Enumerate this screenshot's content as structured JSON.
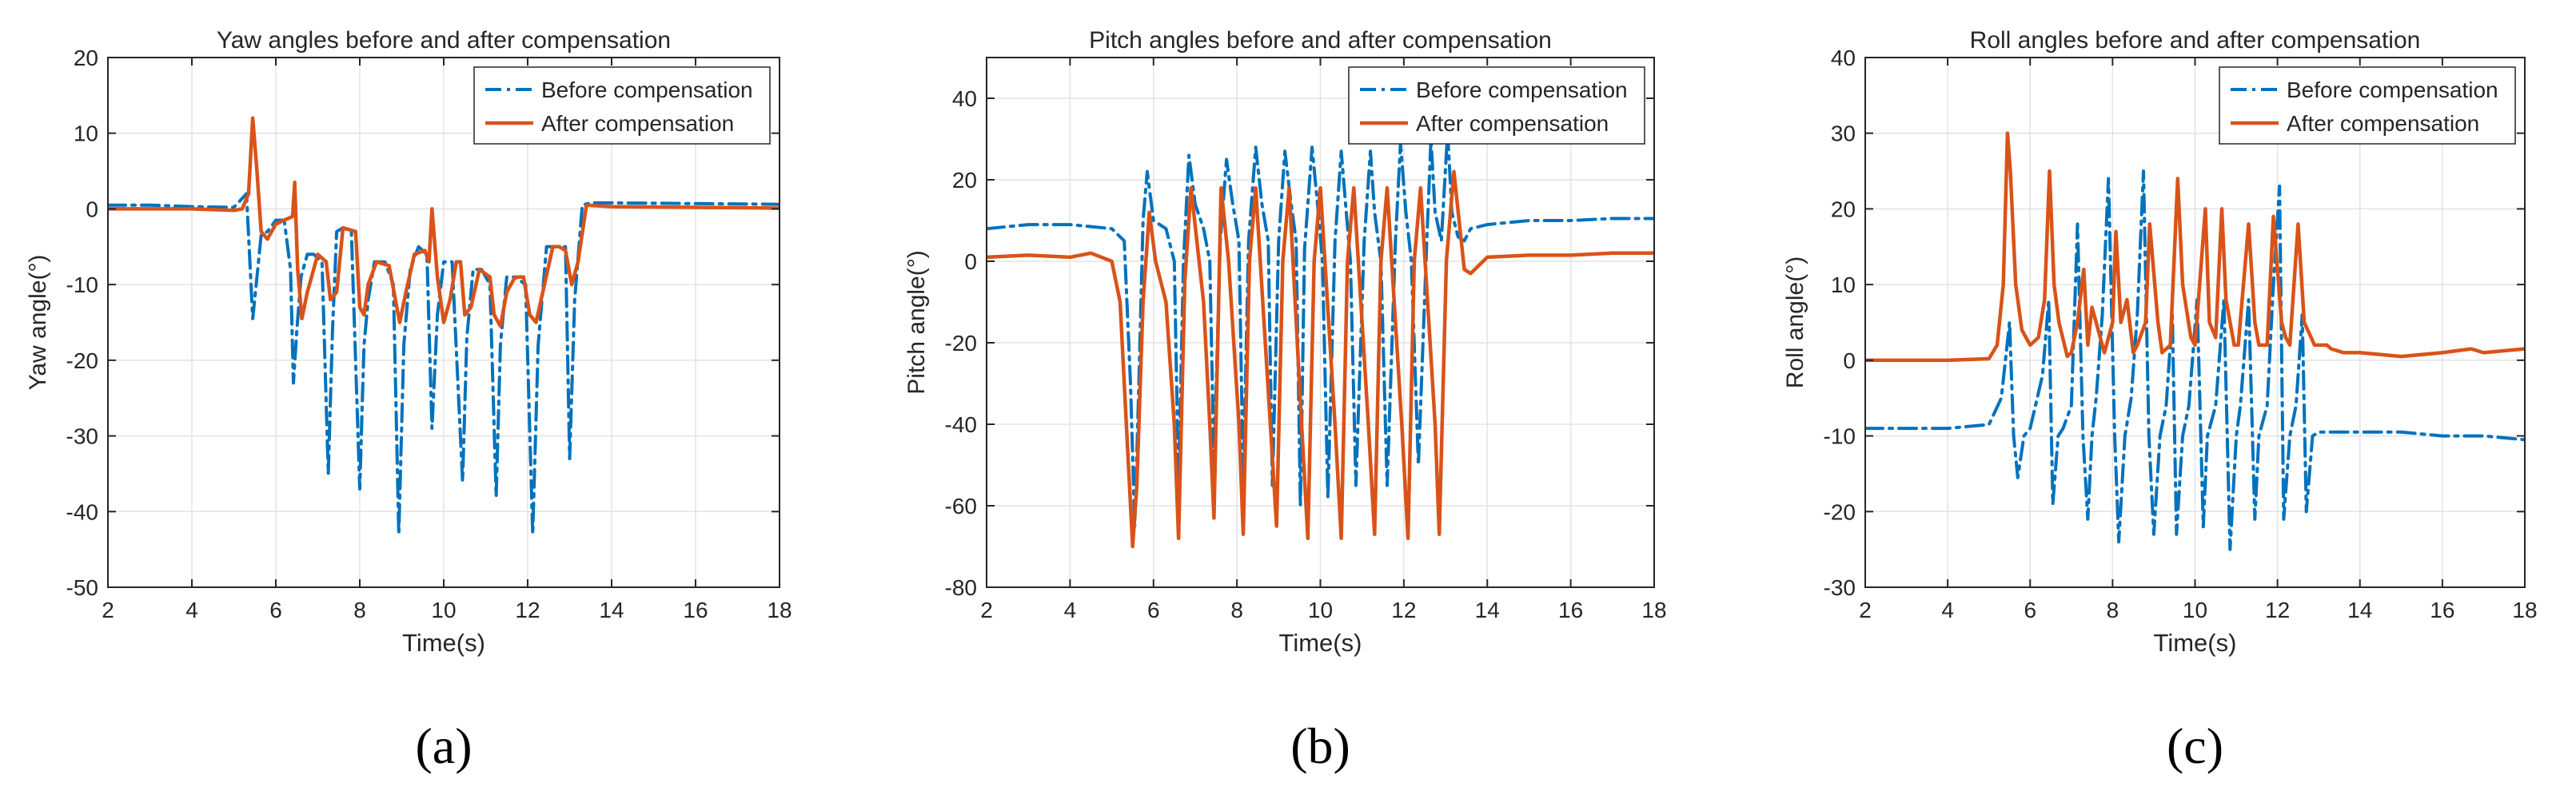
{
  "figure": {
    "sub_labels": [
      "(a)",
      "(b)",
      "(c)"
    ]
  },
  "colors": {
    "before": "#0072BD",
    "after": "#D95319",
    "grid": "#e3e3e3",
    "axis": "#262626"
  },
  "chart_data": [
    {
      "type": "line",
      "title": "Yaw angles before and after compensation",
      "xlabel": "Time(s)",
      "ylabel": "Yaw angle(°)",
      "xlim": [
        2,
        18
      ],
      "ylim": [
        -50,
        20
      ],
      "xticks": [
        2,
        4,
        6,
        8,
        10,
        12,
        14,
        16,
        18
      ],
      "yticks": [
        -50,
        -40,
        -30,
        -20,
        -10,
        0,
        10,
        20
      ],
      "grid": true,
      "legend_position": "top-right",
      "series": [
        {
          "name": "Before compensation",
          "style": "dash-dot",
          "x": [
            2.0,
            3.0,
            4.0,
            5.0,
            5.3,
            5.45,
            5.55,
            5.65,
            5.8,
            6.0,
            6.2,
            6.35,
            6.42,
            6.5,
            6.6,
            6.75,
            6.9,
            7.1,
            7.25,
            7.35,
            7.45,
            7.6,
            7.8,
            8.0,
            8.1,
            8.2,
            8.35,
            8.6,
            8.8,
            8.93,
            9.05,
            9.2,
            9.4,
            9.6,
            9.72,
            9.85,
            10.0,
            10.2,
            10.45,
            10.55,
            10.7,
            10.9,
            11.1,
            11.25,
            11.35,
            11.5,
            11.7,
            11.95,
            12.12,
            12.25,
            12.45,
            12.7,
            12.9,
            13.0,
            13.12,
            13.3,
            13.5,
            14.0,
            16.0,
            18.0
          ],
          "values": [
            0.5,
            0.5,
            0.3,
            0.2,
            2.0,
            -14.5,
            -9.0,
            -3.5,
            -3.0,
            -1.5,
            -1.5,
            -8.0,
            -23.0,
            -16.0,
            -9.0,
            -6.0,
            -6.0,
            -7.0,
            -35.0,
            -16.0,
            -3.0,
            -2.5,
            -3.0,
            -37.0,
            -18.0,
            -12.0,
            -7.0,
            -7.0,
            -10.0,
            -43.0,
            -18.0,
            -8.0,
            -5.0,
            -6.0,
            -29.0,
            -14.0,
            -7.0,
            -7.0,
            -36.0,
            -17.0,
            -8.0,
            -8.0,
            -10.0,
            -38.0,
            -18.0,
            -9.0,
            -9.0,
            -10.0,
            -43.0,
            -18.0,
            -5.0,
            -5.0,
            -5.0,
            -33.0,
            -12.0,
            0.5,
            0.8,
            0.8,
            0.7,
            0.6
          ]
        },
        {
          "name": "After compensation",
          "style": "solid",
          "x": [
            2.0,
            3.0,
            4.0,
            5.0,
            5.2,
            5.35,
            5.45,
            5.55,
            5.65,
            5.8,
            6.0,
            6.2,
            6.4,
            6.45,
            6.52,
            6.62,
            6.75,
            7.0,
            7.2,
            7.3,
            7.45,
            7.6,
            7.9,
            8.0,
            8.1,
            8.2,
            8.4,
            8.7,
            8.85,
            8.95,
            9.1,
            9.3,
            9.55,
            9.65,
            9.72,
            9.85,
            10.0,
            10.15,
            10.3,
            10.4,
            10.5,
            10.65,
            10.85,
            11.1,
            11.2,
            11.35,
            11.5,
            11.7,
            11.9,
            12.05,
            12.2,
            12.4,
            12.6,
            12.75,
            12.9,
            13.05,
            13.2,
            13.4,
            14.0,
            16.0,
            18.0
          ],
          "values": [
            0.0,
            0.0,
            0.0,
            -0.2,
            0.0,
            2.0,
            12.0,
            5.0,
            -3.0,
            -4.0,
            -2.0,
            -1.5,
            -1.0,
            3.5,
            -8.0,
            -14.5,
            -11.0,
            -6.0,
            -7.0,
            -12.0,
            -11.0,
            -2.5,
            -3.0,
            -13.0,
            -14.0,
            -10.0,
            -7.0,
            -7.5,
            -12.0,
            -15.0,
            -11.0,
            -6.0,
            -5.5,
            -7.0,
            0.0,
            -9.0,
            -15.0,
            -12.0,
            -7.0,
            -7.0,
            -14.0,
            -13.0,
            -8.0,
            -9.0,
            -14.0,
            -15.5,
            -11.0,
            -9.0,
            -9.0,
            -14.0,
            -15.0,
            -10.0,
            -5.0,
            -5.0,
            -5.5,
            -10.0,
            -7.0,
            0.5,
            0.3,
            0.2,
            0.1
          ]
        }
      ]
    },
    {
      "type": "line",
      "title": "Pitch angles before and after compensation",
      "xlabel": "Time(s)",
      "ylabel": "Pitch angle(°)",
      "xlim": [
        2,
        18
      ],
      "ylim": [
        -80,
        50
      ],
      "xticks": [
        2,
        4,
        6,
        8,
        10,
        12,
        14,
        16,
        18
      ],
      "yticks": [
        -80,
        -60,
        -40,
        -20,
        0,
        20,
        40
      ],
      "grid": true,
      "legend_position": "top-right",
      "series": [
        {
          "name": "Before compensation",
          "style": "dash-dot",
          "x": [
            2.0,
            3.0,
            4.0,
            5.0,
            5.3,
            5.45,
            5.55,
            5.65,
            5.75,
            5.85,
            6.0,
            6.3,
            6.5,
            6.6,
            6.72,
            6.85,
            7.0,
            7.2,
            7.35,
            7.45,
            7.6,
            7.75,
            7.9,
            8.05,
            8.15,
            8.28,
            8.45,
            8.6,
            8.75,
            8.85,
            9.0,
            9.15,
            9.3,
            9.42,
            9.52,
            9.62,
            9.8,
            9.95,
            10.05,
            10.18,
            10.35,
            10.5,
            10.62,
            10.72,
            10.85,
            11.05,
            11.2,
            11.3,
            11.45,
            11.6,
            11.8,
            11.92,
            12.05,
            12.18,
            12.35,
            12.55,
            12.65,
            12.75,
            12.9,
            13.05,
            13.15,
            13.3,
            13.45,
            13.6,
            14.0,
            15.0,
            16.0,
            17.0,
            18.0
          ],
          "values": [
            8.0,
            9.0,
            9.0,
            8.0,
            5.0,
            -30.0,
            -65.0,
            -30.0,
            10.0,
            22.0,
            10.0,
            8.0,
            0.0,
            -55.0,
            0.0,
            26.0,
            14.0,
            8.0,
            0.0,
            -50.0,
            5.0,
            25.0,
            14.0,
            5.0,
            -55.0,
            5.0,
            28.0,
            14.0,
            5.0,
            -55.0,
            5.0,
            27.0,
            14.0,
            5.0,
            -60.0,
            3.0,
            28.0,
            12.0,
            0.0,
            -58.0,
            5.0,
            27.0,
            12.0,
            0.0,
            -55.0,
            5.0,
            27.0,
            12.0,
            0.0,
            -55.0,
            5.0,
            29.0,
            12.0,
            0.0,
            -50.0,
            5.0,
            30.0,
            12.0,
            5.0,
            32.0,
            12.0,
            6.0,
            5.0,
            8.0,
            9.0,
            10.0,
            10.0,
            10.5,
            10.5
          ]
        },
        {
          "name": "After compensation",
          "style": "solid",
          "x": [
            2.0,
            3.0,
            4.0,
            4.5,
            5.0,
            5.2,
            5.35,
            5.5,
            5.6,
            5.75,
            5.9,
            6.05,
            6.3,
            6.5,
            6.6,
            6.75,
            6.9,
            7.2,
            7.35,
            7.45,
            7.62,
            7.8,
            8.05,
            8.15,
            8.3,
            8.45,
            8.8,
            8.95,
            9.1,
            9.25,
            9.55,
            9.7,
            9.85,
            10.0,
            10.35,
            10.5,
            10.65,
            10.8,
            11.15,
            11.3,
            11.45,
            11.6,
            11.95,
            12.1,
            12.25,
            12.4,
            12.75,
            12.85,
            13.02,
            13.2,
            13.45,
            13.6,
            14.0,
            15.0,
            16.0,
            17.0,
            18.0
          ],
          "values": [
            1.0,
            1.5,
            1.0,
            2.0,
            0.0,
            -10.0,
            -40.0,
            -70.0,
            -55.0,
            -10.0,
            12.0,
            0.0,
            -10.0,
            -40.0,
            -68.0,
            -5.0,
            18.0,
            -10.0,
            -40.0,
            -63.0,
            18.0,
            0.0,
            -40.0,
            -67.0,
            0.0,
            18.0,
            -40.0,
            -65.0,
            0.0,
            18.0,
            -40.0,
            -68.0,
            0.0,
            18.0,
            -40.0,
            -68.0,
            0.0,
            18.0,
            -40.0,
            -67.0,
            0.0,
            18.0,
            -40.0,
            -68.0,
            0.0,
            18.0,
            -40.0,
            -67.0,
            0.0,
            22.0,
            -2.0,
            -3.0,
            1.0,
            1.5,
            1.5,
            2.0,
            2.0
          ]
        }
      ]
    },
    {
      "type": "line",
      "title": "Roll angles before and after compensation",
      "xlabel": "Time(s)",
      "ylabel": "Roll angle(°)",
      "xlim": [
        2,
        18
      ],
      "ylim": [
        -30,
        40
      ],
      "xticks": [
        2,
        4,
        6,
        8,
        10,
        12,
        14,
        16,
        18
      ],
      "yticks": [
        -30,
        -20,
        -10,
        0,
        10,
        20,
        30,
        40
      ],
      "grid": true,
      "legend_position": "top-right",
      "series": [
        {
          "name": "Before compensation",
          "style": "dash-dot",
          "x": [
            2.0,
            3.0,
            4.0,
            5.0,
            5.3,
            5.5,
            5.6,
            5.7,
            5.85,
            6.0,
            6.3,
            6.45,
            6.55,
            6.68,
            6.8,
            7.0,
            7.15,
            7.28,
            7.4,
            7.5,
            7.6,
            7.75,
            7.9,
            8.05,
            8.15,
            8.3,
            8.45,
            8.6,
            8.75,
            8.88,
            9.0,
            9.15,
            9.3,
            9.45,
            9.55,
            9.7,
            9.85,
            10.05,
            10.2,
            10.3,
            10.5,
            10.7,
            10.85,
            11.0,
            11.1,
            11.3,
            11.45,
            11.55,
            11.75,
            11.9,
            12.05,
            12.15,
            12.3,
            12.45,
            12.6,
            12.7,
            12.85,
            13.0,
            13.1,
            13.25,
            13.4,
            13.6,
            14.0,
            15.0,
            16.0,
            17.0,
            18.0
          ],
          "values": [
            -9.0,
            -9.0,
            -9.0,
            -8.5,
            -5.0,
            5.0,
            -10.0,
            -15.5,
            -10.0,
            -9.0,
            -2.0,
            8.0,
            -19.0,
            -10.0,
            -9.0,
            -6.0,
            18.0,
            -10.0,
            -21.0,
            -10.0,
            -5.0,
            6.0,
            24.0,
            -10.0,
            -24.0,
            -10.0,
            -5.0,
            6.0,
            25.0,
            -10.0,
            -23.0,
            -10.0,
            -6.0,
            6.0,
            -23.0,
            -10.0,
            -6.0,
            8.0,
            -22.0,
            -10.0,
            -6.0,
            8.0,
            -25.0,
            -10.0,
            -6.0,
            8.0,
            -21.0,
            -10.0,
            -6.0,
            10.0,
            23.0,
            -21.0,
            -10.0,
            -6.0,
            6.0,
            -20.0,
            -10.0,
            -9.5,
            -9.5,
            -9.5,
            -9.5,
            -9.5,
            -9.5,
            -9.5,
            -10.0,
            -10.0,
            -10.5
          ]
        },
        {
          "name": "After compensation",
          "style": "solid",
          "x": [
            2.0,
            3.0,
            4.0,
            5.0,
            5.2,
            5.35,
            5.45,
            5.52,
            5.65,
            5.8,
            6.0,
            6.2,
            6.35,
            6.47,
            6.58,
            6.7,
            6.9,
            7.0,
            7.15,
            7.3,
            7.4,
            7.5,
            7.6,
            7.8,
            8.0,
            8.08,
            8.2,
            8.35,
            8.5,
            8.6,
            8.8,
            8.9,
            9.1,
            9.2,
            9.4,
            9.58,
            9.7,
            9.9,
            10.0,
            10.25,
            10.35,
            10.5,
            10.65,
            10.75,
            10.95,
            11.05,
            11.3,
            11.45,
            11.55,
            11.75,
            11.9,
            12.1,
            12.2,
            12.3,
            12.5,
            12.65,
            12.9,
            13.05,
            13.2,
            13.3,
            13.6,
            14.0,
            15.0,
            16.0,
            16.7,
            17.0,
            18.0
          ],
          "values": [
            0.0,
            0.0,
            0.0,
            0.2,
            2.0,
            10.0,
            30.0,
            25.0,
            10.0,
            4.0,
            2.0,
            3.0,
            8.0,
            25.0,
            10.0,
            5.0,
            0.5,
            1.0,
            5.0,
            12.0,
            2.0,
            7.0,
            5.0,
            1.0,
            5.0,
            17.0,
            5.0,
            8.0,
            1.0,
            2.0,
            5.0,
            18.0,
            5.0,
            1.0,
            2.0,
            24.0,
            10.0,
            3.0,
            2.0,
            20.0,
            5.0,
            3.0,
            20.0,
            8.0,
            2.0,
            2.0,
            18.0,
            5.0,
            2.0,
            2.0,
            19.0,
            5.0,
            3.0,
            2.0,
            18.0,
            5.0,
            2.0,
            2.0,
            2.0,
            1.5,
            1.0,
            1.0,
            0.5,
            1.0,
            1.5,
            1.0,
            1.5
          ]
        }
      ]
    }
  ]
}
